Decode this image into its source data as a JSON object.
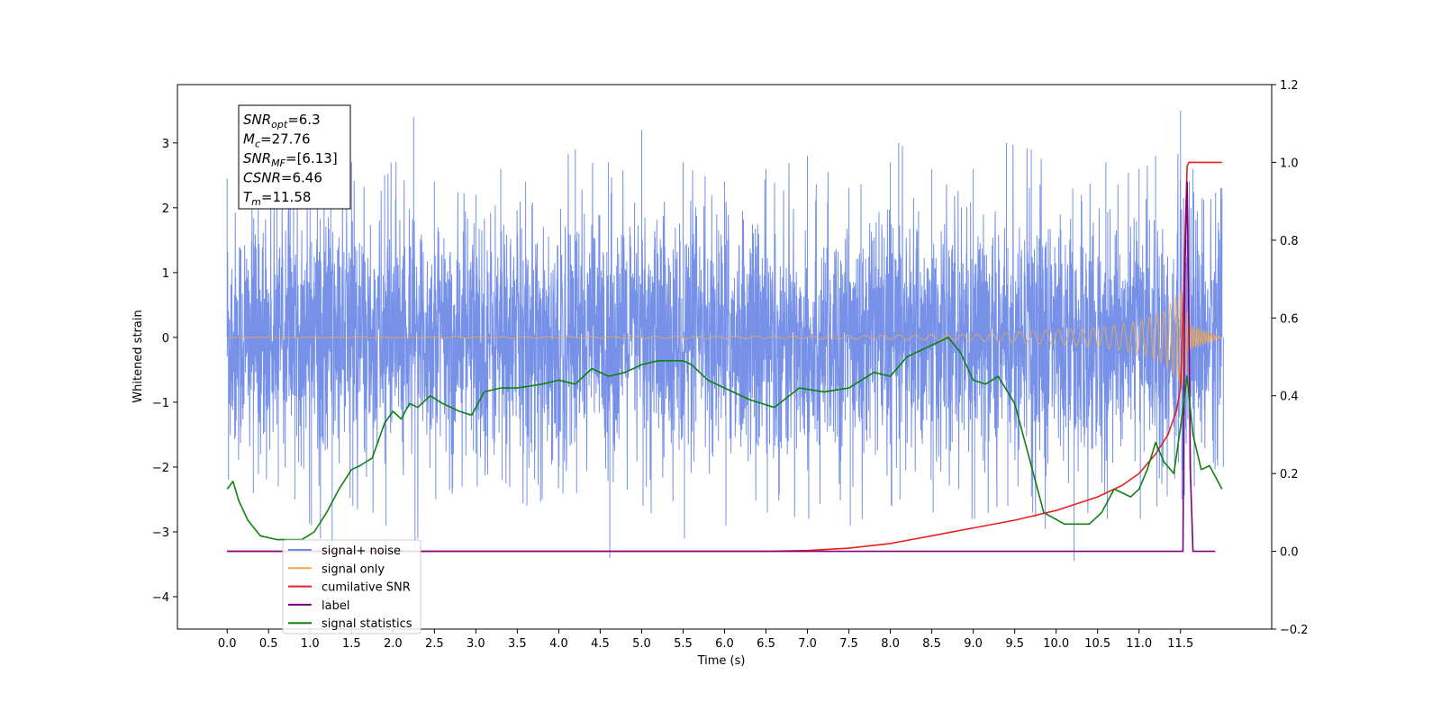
{
  "chart_data": {
    "type": "line",
    "xlabel": "Time (s)",
    "ylabel_left": "Whitened strain",
    "ylabel_right": "",
    "xlim": [
      -0.6,
      12.6
    ],
    "ylim_left": [
      -4.5,
      3.9
    ],
    "ylim_right": [
      -0.2,
      1.2
    ],
    "x_ticks": [
      0.0,
      0.5,
      1.0,
      1.5,
      2.0,
      2.5,
      3.0,
      3.5,
      4.0,
      4.5,
      5.0,
      5.5,
      6.0,
      6.5,
      7.0,
      7.5,
      8.0,
      8.5,
      9.0,
      9.5,
      10.0,
      10.5,
      11.0,
      11.5
    ],
    "x_tick_labels": [
      "0.0",
      "0.5",
      "1.0",
      "1.5",
      "2.0",
      "2.5",
      "3.0",
      "3.5",
      "4.0",
      "4.5",
      "5.0",
      "5.5",
      "6.0",
      "6.5",
      "7.0",
      "7.5",
      "8.0",
      "8.5",
      "9.0",
      "9.5",
      "10.0",
      "10.5",
      "11.0",
      "11.5"
    ],
    "y_ticks_left": [
      3,
      2,
      1,
      0,
      -1,
      -2,
      -3,
      -4
    ],
    "y_tick_labels_left": [
      "3",
      "2",
      "1",
      "0",
      "−1",
      "−2",
      "−3",
      "−4"
    ],
    "y_ticks_right": [
      1.2,
      1.0,
      0.8,
      0.6,
      0.4,
      0.2,
      0.0,
      -0.2
    ],
    "y_tick_labels_right": [
      "1.2",
      "1.0",
      "0.8",
      "0.6",
      "0.4",
      "0.2",
      "0.0",
      "−0.2"
    ],
    "grid": false,
    "legend_position": "bottom-left",
    "info_box": {
      "lines": [
        {
          "sym": "SNR",
          "sub": "opt",
          "val": "=6.3"
        },
        {
          "sym": "M",
          "sub": "c",
          "val": "=27.76"
        },
        {
          "sym": "SNR",
          "sub": "MF",
          "val": "=[6.13]"
        },
        {
          "sym": "CSNR",
          "sub": "",
          "val": "=6.46"
        },
        {
          "sym": "T",
          "sub": "m",
          "val": "=11.58"
        }
      ]
    },
    "series": [
      {
        "name": "signal+ noise",
        "axis": "left",
        "color": "#6f8be6",
        "style": "noise",
        "x_range": [
          0.0,
          12.0
        ],
        "envelope_peaks": [
          [
            0.0,
            2.45,
            -2.2
          ],
          [
            0.3,
            2.3,
            -2.4
          ],
          [
            0.6,
            2.2,
            -2.3
          ],
          [
            0.8,
            2.6,
            -2.5
          ],
          [
            1.0,
            2.1,
            -2.9
          ],
          [
            1.25,
            2.2,
            -3.3
          ],
          [
            1.5,
            2.7,
            -2.6
          ],
          [
            1.9,
            2.5,
            -2.9
          ],
          [
            2.25,
            3.4,
            -3.25
          ],
          [
            2.5,
            2.4,
            -2.5
          ],
          [
            3.0,
            2.2,
            -2.3
          ],
          [
            3.3,
            2.6,
            -2.2
          ],
          [
            3.6,
            2.4,
            -2.6
          ],
          [
            4.2,
            2.9,
            -2.4
          ],
          [
            4.6,
            2.7,
            -3.4
          ],
          [
            5.0,
            3.2,
            -2.6
          ],
          [
            5.5,
            2.7,
            -3.1
          ],
          [
            6.0,
            2.4,
            -2.9
          ],
          [
            6.5,
            2.6,
            -2.7
          ],
          [
            7.0,
            2.8,
            -2.8
          ],
          [
            7.5,
            2.3,
            -2.9
          ],
          [
            8.0,
            2.7,
            -2.6
          ],
          [
            8.1,
            3.0,
            -2.5
          ],
          [
            8.5,
            2.6,
            -2.7
          ],
          [
            9.0,
            2.6,
            -2.8
          ],
          [
            9.4,
            3.0,
            -2.6
          ],
          [
            9.7,
            2.9,
            -2.7
          ],
          [
            10.2,
            2.3,
            -3.45
          ],
          [
            10.6,
            2.7,
            -2.8
          ],
          [
            11.0,
            2.6,
            -2.8
          ],
          [
            11.2,
            2.8,
            -2.6
          ],
          [
            11.5,
            3.5,
            -2.5
          ],
          [
            11.65,
            2.6,
            -2.3
          ],
          [
            12.0,
            2.3,
            -2.0
          ]
        ]
      },
      {
        "name": "signal only",
        "axis": "left",
        "color": "#f5a850",
        "style": "chirp",
        "x_range": [
          0.0,
          12.0
        ],
        "amplitude_points": [
          [
            0.0,
            0.0
          ],
          [
            7.0,
            0.02
          ],
          [
            9.0,
            0.05
          ],
          [
            10.5,
            0.15
          ],
          [
            11.0,
            0.25
          ],
          [
            11.3,
            0.4
          ],
          [
            11.55,
            0.8
          ],
          [
            11.6,
            0.2
          ],
          [
            12.0,
            0.0
          ]
        ]
      },
      {
        "name": "cumilative SNR",
        "axis": "right",
        "color": "#e82020",
        "style": "line",
        "x": [
          0.0,
          6.5,
          7.0,
          7.5,
          8.0,
          8.5,
          9.0,
          9.5,
          10.0,
          10.5,
          10.8,
          11.0,
          11.2,
          11.35,
          11.45,
          11.5,
          11.53,
          11.56,
          11.58,
          11.6,
          11.7,
          12.0
        ],
        "y": [
          0.0,
          0.0,
          0.002,
          0.008,
          0.02,
          0.04,
          0.06,
          0.08,
          0.105,
          0.14,
          0.17,
          0.2,
          0.25,
          0.3,
          0.36,
          0.42,
          0.6,
          0.85,
          0.99,
          1.0,
          1.0,
          1.0
        ]
      },
      {
        "name": "label",
        "axis": "right",
        "color": "#800080",
        "style": "line",
        "x": [
          0.0,
          11.5,
          11.53,
          11.55,
          11.58,
          11.6,
          11.62,
          11.65,
          11.92
        ],
        "y": [
          0.0,
          0.0,
          0.0,
          0.7,
          0.95,
          0.6,
          0.2,
          0.0,
          0.0
        ]
      },
      {
        "name": "signal statistics",
        "axis": "right",
        "color": "#108010",
        "style": "line",
        "x": [
          0.0,
          0.07,
          0.14,
          0.25,
          0.4,
          0.6,
          0.75,
          0.9,
          1.05,
          1.2,
          1.35,
          1.5,
          1.6,
          1.75,
          1.9,
          2.0,
          2.1,
          2.2,
          2.3,
          2.45,
          2.6,
          2.8,
          2.95,
          3.1,
          3.3,
          3.5,
          3.8,
          4.0,
          4.2,
          4.4,
          4.6,
          4.8,
          5.0,
          5.2,
          5.5,
          5.6,
          5.8,
          6.0,
          6.3,
          6.6,
          6.9,
          7.2,
          7.5,
          7.8,
          8.0,
          8.2,
          8.5,
          8.7,
          8.85,
          9.0,
          9.15,
          9.3,
          9.5,
          9.7,
          9.85,
          10.1,
          10.4,
          10.55,
          10.7,
          10.9,
          11.0,
          11.1,
          11.2,
          11.3,
          11.42,
          11.5,
          11.58,
          11.65,
          11.75,
          11.85,
          12.0
        ],
        "y": [
          0.16,
          0.18,
          0.13,
          0.08,
          0.04,
          0.03,
          0.03,
          0.03,
          0.05,
          0.1,
          0.16,
          0.21,
          0.22,
          0.24,
          0.33,
          0.36,
          0.34,
          0.38,
          0.37,
          0.4,
          0.38,
          0.36,
          0.35,
          0.41,
          0.42,
          0.42,
          0.43,
          0.44,
          0.43,
          0.47,
          0.45,
          0.46,
          0.48,
          0.49,
          0.49,
          0.48,
          0.44,
          0.42,
          0.39,
          0.37,
          0.42,
          0.41,
          0.42,
          0.46,
          0.45,
          0.5,
          0.53,
          0.55,
          0.51,
          0.44,
          0.43,
          0.45,
          0.38,
          0.22,
          0.1,
          0.07,
          0.07,
          0.1,
          0.16,
          0.14,
          0.16,
          0.21,
          0.28,
          0.23,
          0.2,
          0.32,
          0.45,
          0.3,
          0.21,
          0.22,
          0.16
        ]
      }
    ]
  }
}
